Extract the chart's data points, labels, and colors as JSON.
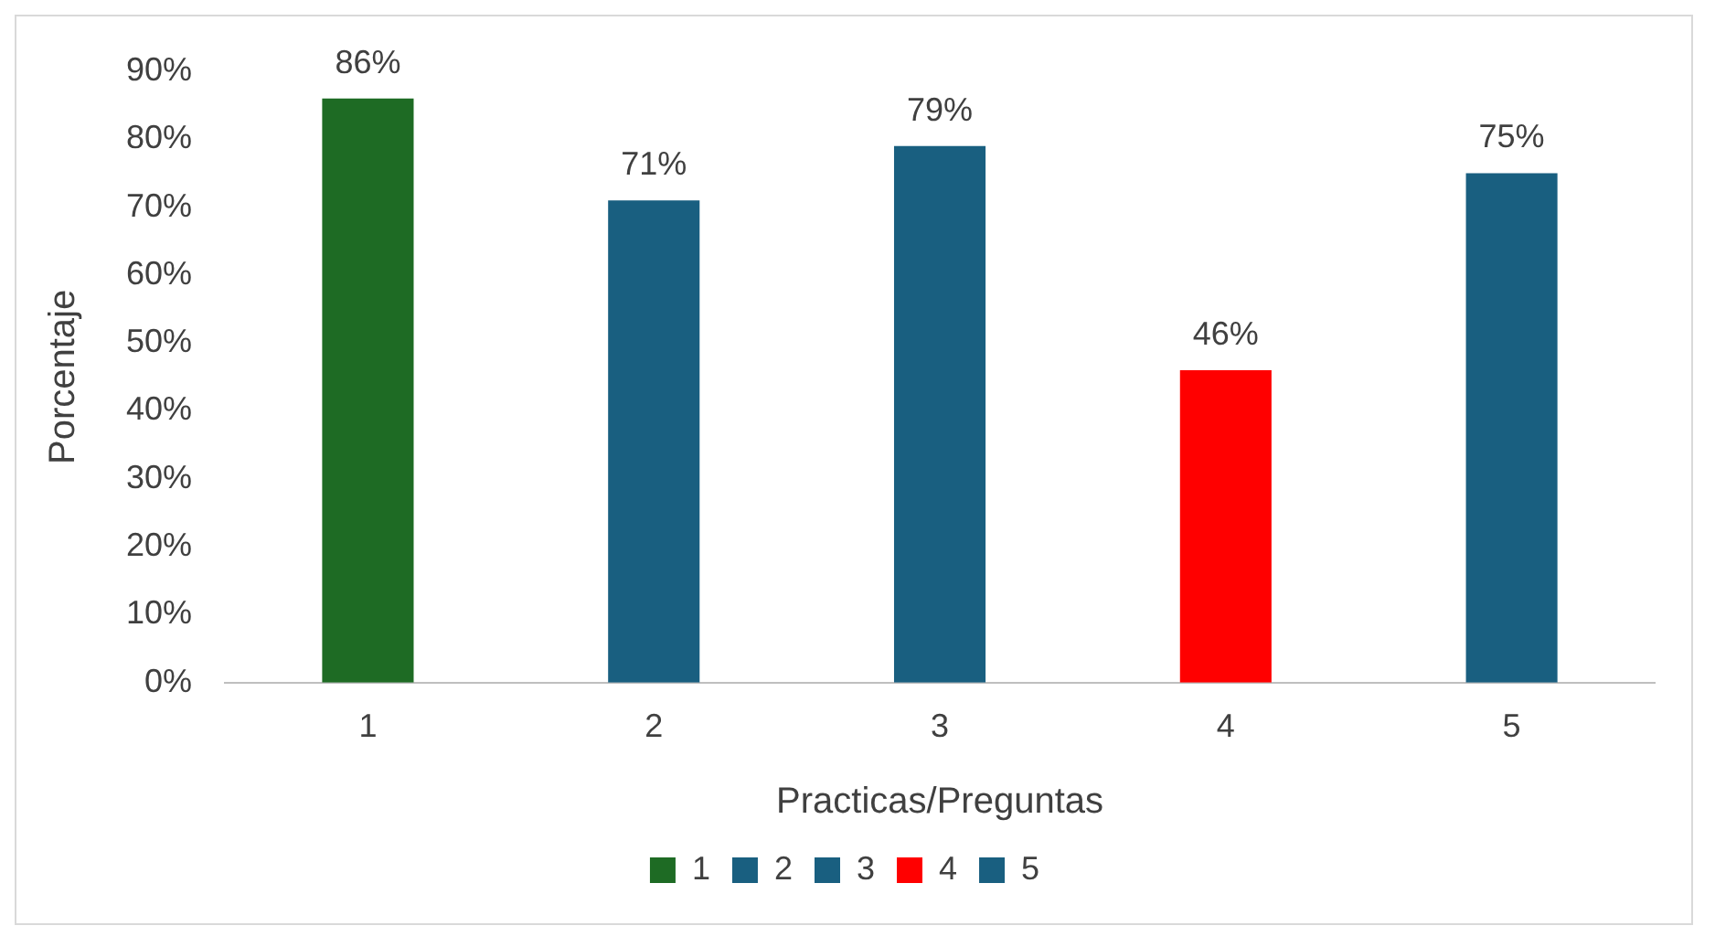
{
  "chart_data": {
    "type": "bar",
    "xlabel": "Practicas/Preguntas",
    "ylabel": "Porcentaje",
    "categories": [
      "1",
      "2",
      "3",
      "4",
      "5"
    ],
    "series": [
      {
        "name": "1",
        "color": "#1e6b24",
        "values": [
          86,
          null,
          null,
          null,
          null
        ],
        "value_labels": [
          "86%",
          null,
          null,
          null,
          null
        ]
      },
      {
        "name": "2",
        "color": "#195f80",
        "values": [
          null,
          71,
          null,
          null,
          null
        ],
        "value_labels": [
          null,
          "71%",
          null,
          null,
          null
        ]
      },
      {
        "name": "3",
        "color": "#195f80",
        "values": [
          null,
          null,
          79,
          null,
          null
        ],
        "value_labels": [
          null,
          null,
          "79%",
          null,
          null
        ]
      },
      {
        "name": "4",
        "color": "#ff0000",
        "values": [
          null,
          null,
          null,
          46,
          null
        ],
        "value_labels": [
          null,
          null,
          null,
          "46%",
          null
        ]
      },
      {
        "name": "5",
        "color": "#195f80",
        "values": [
          null,
          null,
          null,
          null,
          75
        ],
        "value_labels": [
          null,
          null,
          null,
          null,
          "75%"
        ]
      }
    ],
    "ylim": [
      0,
      90
    ],
    "yticks": [
      {
        "value": 0,
        "label": "0%"
      },
      {
        "value": 10,
        "label": "10%"
      },
      {
        "value": 20,
        "label": "20%"
      },
      {
        "value": 30,
        "label": "30%"
      },
      {
        "value": 40,
        "label": "40%"
      },
      {
        "value": 50,
        "label": "50%"
      },
      {
        "value": 60,
        "label": "60%"
      },
      {
        "value": 70,
        "label": "70%"
      },
      {
        "value": 80,
        "label": "80%"
      },
      {
        "value": 90,
        "label": "90%"
      }
    ],
    "grid": false,
    "legend": "bottom"
  }
}
